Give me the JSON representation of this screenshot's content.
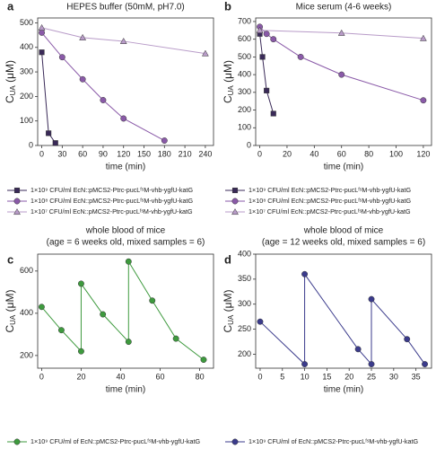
{
  "chart_data": [
    {
      "type": "line",
      "label": "a",
      "title": "HEPES buffer (50mM, pH7.0)",
      "xlabel": "time (min)",
      "ylabel": {
        "main": "C",
        "sub": "UA",
        "rest": " (μM)"
      },
      "xlim": [
        -6,
        252
      ],
      "xticks": [
        0,
        30,
        60,
        90,
        120,
        150,
        180,
        210,
        240
      ],
      "ylim": [
        0,
        520
      ],
      "yticks": [
        0,
        100,
        200,
        300,
        400,
        500
      ],
      "series": [
        {
          "name": "1×10⁹ CFU/ml EcN::pMCS2-Ptrc-pucLᶠˢM-vhb-ygfU-katG",
          "color": "#3a2a58",
          "marker": "square",
          "x": [
            0,
            10,
            20
          ],
          "values": [
            380,
            50,
            10
          ]
        },
        {
          "name": "1×10⁸ CFU/ml EcN::pMCS2-Ptrc-pucLᶠˢM-vhb-ygfU-katG",
          "color": "#8a5aa8",
          "marker": "circle",
          "x": [
            0,
            30,
            60,
            90,
            120,
            180
          ],
          "values": [
            460,
            360,
            270,
            185,
            110,
            20
          ]
        },
        {
          "name": "1×10⁷ CFU/ml EcN::pMCS2-Ptrc-pucLᶠˢM-vhb-ygfU-katG",
          "color": "#b89bc8",
          "marker": "triangle",
          "x": [
            0,
            60,
            120,
            240
          ],
          "values": [
            480,
            440,
            425,
            375
          ]
        }
      ]
    },
    {
      "type": "line",
      "label": "b",
      "title": "Mice serum (4-6 weeks)",
      "xlabel": "time (min)",
      "ylabel": {
        "main": "C",
        "sub": "UA",
        "rest": " (μM)"
      },
      "xlim": [
        -3,
        126
      ],
      "xticks": [
        0,
        20,
        40,
        60,
        80,
        100,
        120
      ],
      "ylim": [
        0,
        720
      ],
      "yticks": [
        0,
        100,
        200,
        300,
        400,
        500,
        600,
        700
      ],
      "series": [
        {
          "name": "1×10⁹ CFU/ml EcN::pMCS2-Ptrc-pucLᶠˢM-vhb-ygfU-katG",
          "color": "#3a2a58",
          "marker": "square",
          "x": [
            0,
            2,
            5,
            10
          ],
          "values": [
            630,
            500,
            310,
            180
          ]
        },
        {
          "name": "1×10⁸ CFU/ml EcN::pMCS2-Ptrc-pucLᶠˢM-vhb-ygfU-katG",
          "color": "#8a5aa8",
          "marker": "circle",
          "x": [
            0,
            5,
            10,
            30,
            60,
            120
          ],
          "values": [
            670,
            630,
            600,
            500,
            400,
            255
          ]
        },
        {
          "name": "1×10⁷ CFU/ml EcN::pMCS2-Ptrc-pucLᶠˢM-vhb-ygfU-katG",
          "color": "#b89bc8",
          "marker": "triangle",
          "x": [
            0,
            60,
            120
          ],
          "values": [
            650,
            635,
            605
          ]
        }
      ]
    },
    {
      "type": "line",
      "label": "c",
      "title": "whole blood of mice",
      "subtitle": "(age = 6 weeks old, mixed samples = 6)",
      "xlabel": "time (min)",
      "ylabel": {
        "main": "C",
        "sub": "UA",
        "rest": " (μM)"
      },
      "xlim": [
        -2,
        87
      ],
      "xticks": [
        0,
        20,
        40,
        60,
        80
      ],
      "ylim": [
        140,
        680
      ],
      "yticks": [
        200,
        400,
        600
      ],
      "series": [
        {
          "name": "1×10⁹ CFU/ml of EcN::pMCS2-Ptrc-pucLᶠˢM-vhb-ygfU-katG",
          "color": "#3e9a3e",
          "marker": "circle",
          "x": [
            0,
            10,
            20,
            20,
            31,
            44,
            44,
            56,
            68,
            82
          ],
          "values": [
            430,
            320,
            220,
            540,
            395,
            265,
            645,
            460,
            280,
            180
          ]
        }
      ]
    },
    {
      "type": "line",
      "label": "d",
      "title": "whole blood of mice",
      "subtitle": "(age = 12 weeks old, mixed samples = 6)",
      "xlabel": "time (min)",
      "ylabel": {
        "main": "C",
        "sub": "UA",
        "rest": " (μM)"
      },
      "xlim": [
        -1,
        38.5
      ],
      "xticks": [
        0,
        5,
        10,
        15,
        20,
        25,
        30,
        35
      ],
      "ylim": [
        172,
        400
      ],
      "yticks": [
        200,
        250,
        300,
        350,
        400
      ],
      "series": [
        {
          "name": "1×10⁹ CFU/ml of EcN::pMCS2-Ptrc-pucLᶠˢM-vhb-ygfU-katG",
          "color": "#3b3b8c",
          "marker": "circle",
          "x": [
            0,
            10,
            10,
            22,
            25,
            25,
            33,
            37
          ],
          "values": [
            265,
            180,
            360,
            210,
            180,
            310,
            230,
            180
          ]
        }
      ]
    }
  ]
}
